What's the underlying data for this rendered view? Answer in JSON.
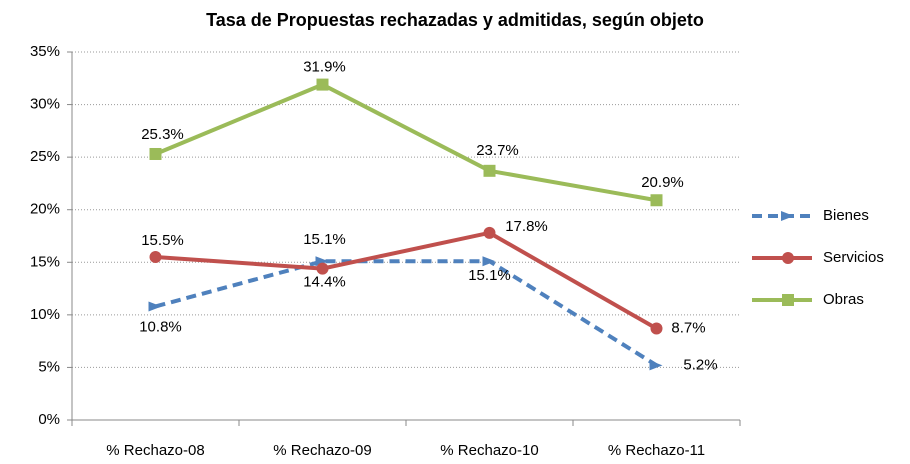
{
  "chart_data": {
    "type": "line",
    "title": "Tasa de Propuestas rechazadas y admitidas, según objeto",
    "categories": [
      "% Rechazo-08",
      "% Rechazo-09",
      "% Rechazo-10",
      "% Rechazo-11"
    ],
    "series": [
      {
        "name": "Bienes",
        "color": "#4f81bd",
        "dashed": true,
        "marker": "diamond",
        "values": [
          10.8,
          15.1,
          15.1,
          5.2
        ],
        "value_labels": [
          "10.8%",
          "15.1%",
          "15.1%",
          "5.2%"
        ]
      },
      {
        "name": "Servicios",
        "color": "#c0504d",
        "marker": "circle",
        "values": [
          15.5,
          14.4,
          17.8,
          8.7
        ],
        "value_labels": [
          "15.5%",
          "14.4%",
          "17.8%",
          "8.7%"
        ]
      },
      {
        "name": "Obras",
        "color": "#9bbb59",
        "marker": "square",
        "values": [
          25.3,
          31.9,
          23.7,
          20.9
        ],
        "value_labels": [
          "25.3%",
          "31.9%",
          "23.7%",
          "20.9%"
        ]
      }
    ],
    "ylim": [
      0,
      35
    ],
    "yticks": [
      {
        "value": 0,
        "label": "0%"
      },
      {
        "value": 5,
        "label": "5%"
      },
      {
        "value": 10,
        "label": "10%"
      },
      {
        "value": 15,
        "label": "15%"
      },
      {
        "value": 20,
        "label": "20%"
      },
      {
        "value": 25,
        "label": "25%"
      },
      {
        "value": 30,
        "label": "30%"
      },
      {
        "value": 35,
        "label": "35%"
      }
    ],
    "grid": true,
    "legend": "right"
  }
}
